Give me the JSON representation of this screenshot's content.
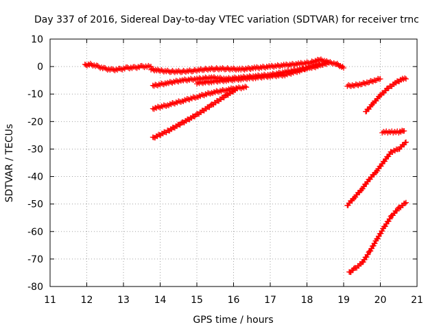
{
  "chart_data": {
    "type": "scatter",
    "title": "Day 337 of 2016, Sidereal Day-to-day VTEC variation (SDTVAR) for receiver trnc",
    "xlabel": "GPS time / hours",
    "ylabel": "SDTVAR / TECUs",
    "xlim": [
      11,
      21
    ],
    "ylim": [
      -80,
      10
    ],
    "x_ticks": [
      "11",
      "12",
      "13",
      "14",
      "15",
      "16",
      "17",
      "18",
      "19",
      "20",
      "21"
    ],
    "y_ticks": [
      "10",
      "0",
      "-10",
      "-20",
      "-30",
      "-40",
      "-50",
      "-60",
      "-70",
      "-80"
    ],
    "grid": true,
    "legend": "none",
    "marker": "plus",
    "color": "#ff0000",
    "series": [
      {
        "x": [
          11.95,
          12.1,
          12.3,
          12.5,
          12.7,
          12.9,
          13.1,
          13.3,
          13.5,
          13.75
        ],
        "y": [
          0.5,
          0.8,
          0.0,
          -0.8,
          -1.2,
          -1.0,
          -0.5,
          -0.4,
          0.0,
          0.0
        ]
      },
      {
        "x": [
          13.75,
          14.0,
          14.3,
          14.6,
          14.9,
          15.2,
          15.5,
          15.8,
          16.2,
          16.6,
          17.0,
          17.4,
          17.8,
          18.1,
          18.35,
          18.6,
          18.8,
          19.0
        ],
        "y": [
          -1.0,
          -1.5,
          -1.8,
          -1.8,
          -1.5,
          -1.0,
          -0.8,
          -0.8,
          -1.0,
          -0.5,
          0.0,
          0.5,
          1.0,
          1.5,
          2.5,
          1.5,
          1.0,
          -0.5
        ]
      },
      {
        "x": [
          13.8,
          14.2,
          14.6,
          15.0,
          15.4,
          15.8,
          16.2,
          16.6,
          17.0,
          17.4,
          17.8,
          18.1,
          18.4,
          18.6
        ],
        "y": [
          -7.0,
          -6.0,
          -5.0,
          -4.5,
          -4.0,
          -4.5,
          -4.0,
          -3.5,
          -3.0,
          -2.0,
          -1.0,
          -0.5,
          0.5,
          1.5
        ]
      },
      {
        "x": [
          15.0,
          15.4,
          15.8,
          16.2,
          16.6,
          17.0,
          17.4,
          17.8,
          18.1,
          18.35
        ],
        "y": [
          -6.0,
          -5.5,
          -5.0,
          -4.5,
          -4.0,
          -3.5,
          -3.0,
          -1.5,
          0.0,
          1.0
        ]
      },
      {
        "x": [
          13.8,
          14.2,
          14.6,
          15.0,
          15.4,
          15.8,
          16.0,
          16.35
        ],
        "y": [
          -15.3,
          -14.0,
          -12.5,
          -11.0,
          -9.5,
          -8.5,
          -8.0,
          -7.5
        ]
      },
      {
        "x": [
          13.8,
          14.2,
          14.6,
          15.0,
          15.4,
          15.8,
          16.1
        ],
        "y": [
          -26.0,
          -23.5,
          -20.5,
          -17.5,
          -14.0,
          -10.5,
          -8.0
        ]
      },
      {
        "x": [
          19.1,
          19.3,
          19.5,
          19.7,
          19.9,
          20.0
        ],
        "y": [
          -7.0,
          -6.8,
          -6.3,
          -5.6,
          -4.8,
          -4.5
        ]
      },
      {
        "x": [
          19.6,
          19.8,
          20.0,
          20.2,
          20.4,
          20.6,
          20.7
        ],
        "y": [
          -16.5,
          -13.5,
          -10.5,
          -8.0,
          -6.0,
          -4.5,
          -4.5
        ]
      },
      {
        "x": [
          20.05,
          20.2,
          20.35,
          20.5,
          20.65
        ],
        "y": [
          -23.8,
          -23.8,
          -23.8,
          -23.8,
          -23.4
        ]
      },
      {
        "x": [
          19.1,
          19.3,
          19.5,
          19.7,
          19.9,
          20.1,
          20.3,
          20.5,
          20.7
        ],
        "y": [
          -50.5,
          -47.5,
          -44.5,
          -41.0,
          -38.0,
          -34.5,
          -31.0,
          -30.0,
          -27.5
        ]
      },
      {
        "x": [
          19.15,
          19.3,
          19.5,
          19.7,
          19.9,
          20.1,
          20.3,
          20.5,
          20.7
        ],
        "y": [
          -75.0,
          -73.5,
          -71.5,
          -67.5,
          -63.0,
          -58.5,
          -54.5,
          -51.5,
          -49.5
        ]
      }
    ]
  }
}
